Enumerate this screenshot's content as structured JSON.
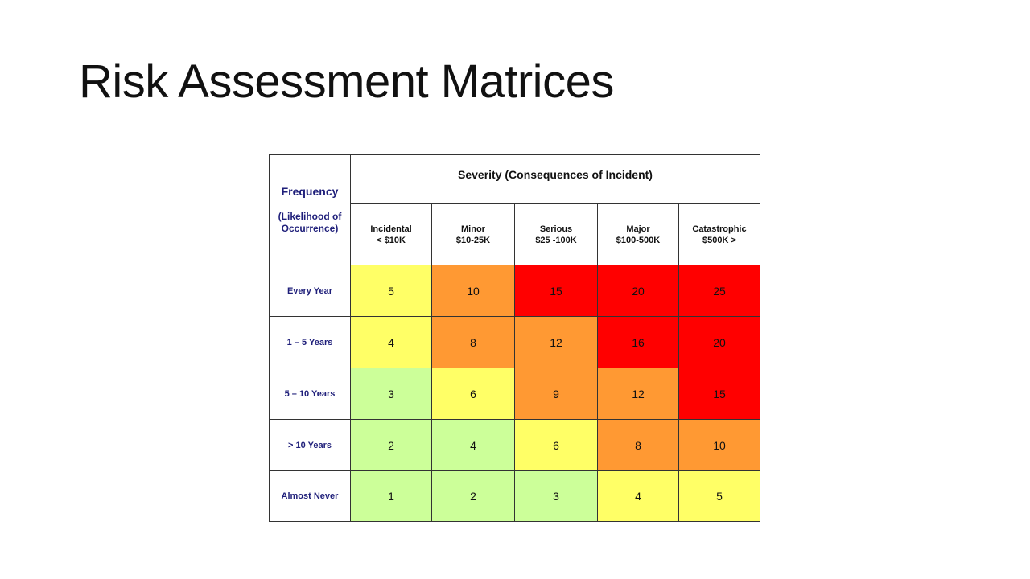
{
  "title": "Risk Assessment Matrices",
  "matrix": {
    "frequency_title": "Frequency",
    "frequency_sub_1": "(Likelihood of",
    "frequency_sub_2": "Occurrence)",
    "severity_title": "Severity (Consequences of Incident)",
    "columns": [
      {
        "line1": "Incidental",
        "line2": "< $10K"
      },
      {
        "line1": "Minor",
        "line2": "$10-25K"
      },
      {
        "line1": "Serious",
        "line2": "$25 -100K"
      },
      {
        "line1": "Major",
        "line2": "$100-500K"
      },
      {
        "line1": "Catastrophic",
        "line2": "$500K >"
      }
    ],
    "rows": [
      {
        "label": "Every Year",
        "values": [
          "5",
          "10",
          "15",
          "20",
          "25"
        ],
        "levels": [
          "yellow",
          "orange",
          "red",
          "red",
          "red"
        ]
      },
      {
        "label": "1 – 5 Years",
        "values": [
          "4",
          "8",
          "12",
          "16",
          "20"
        ],
        "levels": [
          "yellow",
          "orange",
          "orange",
          "red",
          "red"
        ]
      },
      {
        "label": "5 – 10 Years",
        "values": [
          "3",
          "6",
          "9",
          "12",
          "15"
        ],
        "levels": [
          "green",
          "yellow",
          "orange",
          "orange",
          "red"
        ]
      },
      {
        "label": "> 10 Years",
        "values": [
          "2",
          "4",
          "6",
          "8",
          "10"
        ],
        "levels": [
          "green",
          "green",
          "yellow",
          "orange",
          "orange"
        ]
      },
      {
        "label": "Almost Never",
        "values": [
          "1",
          "2",
          "3",
          "4",
          "5"
        ],
        "levels": [
          "green",
          "green",
          "green",
          "yellow",
          "yellow"
        ]
      }
    ],
    "colors": {
      "green": "#ccff99",
      "yellow": "#ffff66",
      "orange": "#ff9933",
      "red": "#ff0000",
      "header_text": "#1f1f7a"
    }
  }
}
